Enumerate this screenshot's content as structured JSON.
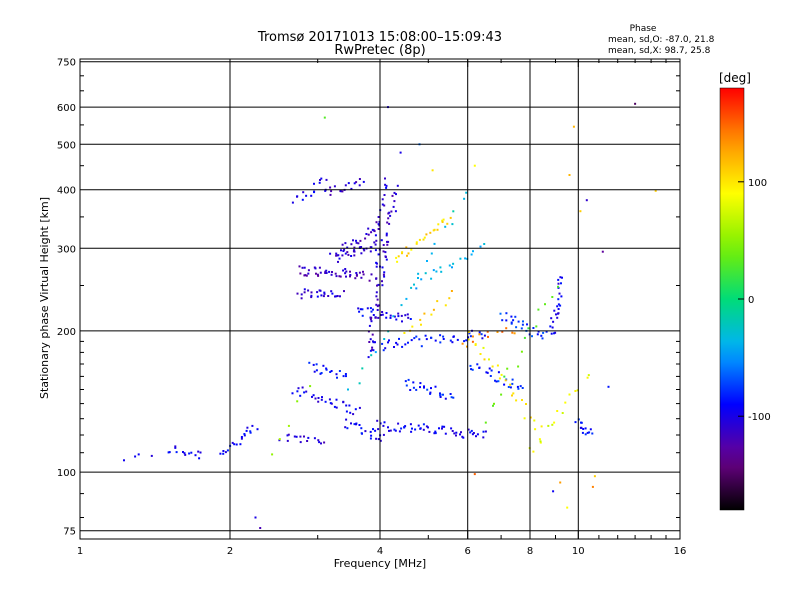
{
  "chart_data": {
    "type": "scatter",
    "title": "Tromsø 20171013 15:08:00–15:09:43",
    "subtitle": "RwPretec (8p)",
    "xlabel": "Frequency [MHz]",
    "ylabel": "Stationary phase Virtual Height [km]",
    "xscale": "log",
    "yscale": "log",
    "xlim": [
      1,
      16
    ],
    "ylim": [
      72,
      760
    ],
    "xticks": [
      1,
      2,
      4,
      6,
      8,
      10,
      16
    ],
    "xtick_labels": [
      "1",
      "2",
      "4",
      "6",
      "8",
      "10",
      "16"
    ],
    "yticks": [
      75,
      100,
      200,
      300,
      400,
      500,
      600,
      750
    ],
    "ytick_labels": [
      "75",
      "100",
      "200",
      "300",
      "400",
      "500",
      "600",
      "750"
    ],
    "grid": true,
    "phase_info": {
      "header": "Phase",
      "line_o": "mean, sd,O: -87.0, 21.8",
      "line_x": "mean, sd,X:  98.7, 25.8"
    },
    "colorbar": {
      "label": "[deg]",
      "ticks": [
        "100",
        "0",
        "-100"
      ],
      "tick_values": [
        100,
        0,
        -100
      ],
      "range": [
        -180,
        180
      ]
    },
    "traces": [
      {
        "x": [
          1.22,
          1.38
        ],
        "h": [
          107,
          107
        ],
        "phase": -100,
        "n": 4
      },
      {
        "x": [
          1.5,
          1.75
        ],
        "h": [
          112,
          109
        ],
        "phase": -95,
        "n": 14
      },
      {
        "x": [
          1.92,
          2.25
        ],
        "h": [
          110,
          124
        ],
        "phase": -90,
        "n": 20
      },
      {
        "x": [
          2.55,
          3.1
        ],
        "h": [
          118,
          118
        ],
        "phase": -110,
        "n": 16
      },
      {
        "x": [
          2.7,
          3.6
        ],
        "h": [
          150,
          135
        ],
        "phase": -100,
        "n": 30
      },
      {
        "x": [
          2.9,
          3.4
        ],
        "h": [
          168,
          160
        ],
        "phase": -85,
        "n": 18
      },
      {
        "x": [
          3.4,
          4.1
        ],
        "h": [
          128,
          118
        ],
        "phase": -95,
        "n": 22
      },
      {
        "x": [
          3.95,
          6.5
        ],
        "h": [
          126,
          120
        ],
        "phase": -95,
        "n": 55
      },
      {
        "x": [
          3.8,
          6.5
        ],
        "h": [
          185,
          197
        ],
        "phase": -90,
        "n": 45
      },
      {
        "x": [
          3.6,
          4.6
        ],
        "h": [
          222,
          212
        ],
        "phase": -95,
        "n": 30
      },
      {
        "x": [
          2.75,
          3.8
        ],
        "h": [
          270,
          262
        ],
        "phase": -115,
        "n": 45
      },
      {
        "x": [
          3.2,
          3.9
        ],
        "h": [
          285,
          305
        ],
        "phase": -110,
        "n": 30
      },
      {
        "x": [
          3.35,
          3.95
        ],
        "h": [
          295,
          335
        ],
        "phase": -110,
        "n": 20
      },
      {
        "x": [
          2.75,
          3.35
        ],
        "h": [
          240,
          238
        ],
        "phase": -105,
        "n": 25
      },
      {
        "x": [
          3.1,
          3.7
        ],
        "h": [
          390,
          420
        ],
        "phase": -110,
        "n": 18
      },
      {
        "x": [
          2.7,
          3.1
        ],
        "h": [
          380,
          420
        ],
        "phase": -100,
        "n": 14
      },
      {
        "x": [
          3.8,
          4.3
        ],
        "h": [
          180,
          400
        ],
        "phase": -110,
        "n": 55
      },
      {
        "x": [
          3.9,
          4.1
        ],
        "h": [
          260,
          420
        ],
        "phase": -105,
        "n": 25
      },
      {
        "x": [
          4.5,
          5.6
        ],
        "h": [
          155,
          145
        ],
        "phase": -85,
        "n": 25
      },
      {
        "x": [
          6.1,
          7.7
        ],
        "h": [
          170,
          150
        ],
        "phase": -80,
        "n": 25
      },
      {
        "x": [
          7.0,
          8.6
        ],
        "h": [
          215,
          195
        ],
        "phase": -75,
        "n": 25
      },
      {
        "x": [
          8.8,
          9.3
        ],
        "h": [
          195,
          260
        ],
        "phase": -95,
        "n": 25
      },
      {
        "x": [
          10.0,
          10.6
        ],
        "h": [
          130,
          118
        ],
        "phase": -85,
        "n": 14
      },
      {
        "x": [
          4.6,
          6.4
        ],
        "h": [
          250,
          300
        ],
        "phase": -40,
        "n": 20
      },
      {
        "x": [
          3.5,
          6.0
        ],
        "h": [
          150,
          400
        ],
        "phase": -30,
        "n": 20
      },
      {
        "x": [
          4.3,
          5.5
        ],
        "h": [
          280,
          350
        ],
        "phase": 105,
        "n": 25
      },
      {
        "x": [
          4.5,
          5.6
        ],
        "h": [
          200,
          240
        ],
        "phase": 110,
        "n": 12
      },
      {
        "x": [
          5.8,
          7.5
        ],
        "h": [
          188,
          200
        ],
        "phase": 140,
        "n": 12
      },
      {
        "x": [
          6.0,
          8.5
        ],
        "h": [
          200,
          120
        ],
        "phase": 95,
        "n": 25
      },
      {
        "x": [
          8.0,
          10.5
        ],
        "h": [
          110,
          160
        ],
        "phase": 80,
        "n": 15
      },
      {
        "x": [
          6.5,
          9.0
        ],
        "h": [
          130,
          250
        ],
        "phase": 30,
        "n": 15
      },
      {
        "x": [
          2.4,
          2.9
        ],
        "h": [
          110,
          150
        ],
        "phase": 60,
        "n": 5
      }
    ],
    "isolated_points": [
      {
        "x": 2.25,
        "h": 80,
        "phase": -100
      },
      {
        "x": 2.3,
        "h": 76,
        "phase": -120
      },
      {
        "x": 4.15,
        "h": 600,
        "phase": -100
      },
      {
        "x": 9.8,
        "h": 545,
        "phase": 120
      },
      {
        "x": 9.6,
        "h": 430,
        "phase": 120
      },
      {
        "x": 10.4,
        "h": 380,
        "phase": -110
      },
      {
        "x": 10.1,
        "h": 360,
        "phase": 110
      },
      {
        "x": 11.2,
        "h": 295,
        "phase": -130
      },
      {
        "x": 13.0,
        "h": 610,
        "phase": -150
      },
      {
        "x": 14.3,
        "h": 398,
        "phase": 110
      },
      {
        "x": 11.5,
        "h": 152,
        "phase": -85
      },
      {
        "x": 10.8,
        "h": 98,
        "phase": 110
      },
      {
        "x": 9.2,
        "h": 95,
        "phase": 130
      },
      {
        "x": 8.9,
        "h": 91,
        "phase": -95
      },
      {
        "x": 9.5,
        "h": 84,
        "phase": 90
      },
      {
        "x": 10.7,
        "h": 93,
        "phase": 140
      },
      {
        "x": 6.2,
        "h": 99,
        "phase": 150
      },
      {
        "x": 3.1,
        "h": 570,
        "phase": 30
      },
      {
        "x": 4.4,
        "h": 480,
        "phase": -100
      },
      {
        "x": 5.1,
        "h": 440,
        "phase": 100
      },
      {
        "x": 6.2,
        "h": 450,
        "phase": 90
      },
      {
        "x": 4.8,
        "h": 500,
        "phase": -60
      }
    ]
  }
}
